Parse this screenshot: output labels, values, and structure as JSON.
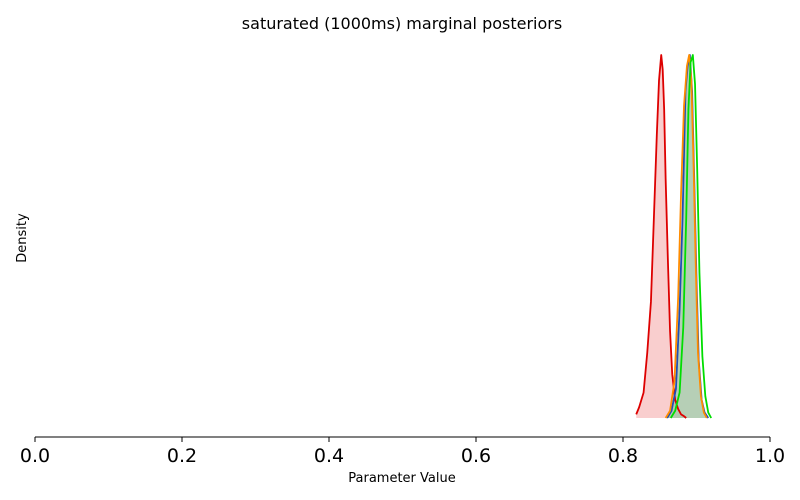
{
  "chart_data": {
    "type": "area",
    "title": "saturated (1000ms) marginal posteriors",
    "xlabel": "Parameter Value",
    "ylabel": "Density",
    "xlim": [
      0.0,
      1.0
    ],
    "xticks": [
      "0.0",
      "0.2",
      "0.4",
      "0.6",
      "0.8",
      "1.0"
    ],
    "grid": false,
    "legend": "none",
    "series": [
      {
        "color": "#dd0000",
        "fill": "#f4a6a6",
        "x": [
          0.818,
          0.822,
          0.828,
          0.833,
          0.838,
          0.842,
          0.846,
          0.849,
          0.852,
          0.854,
          0.856,
          0.858,
          0.861,
          0.864,
          0.867,
          0.871,
          0.875,
          0.879,
          0.883,
          0.886
        ],
        "y": [
          0.01,
          0.03,
          0.07,
          0.18,
          0.32,
          0.55,
          0.78,
          0.93,
          1.0,
          0.96,
          0.85,
          0.66,
          0.44,
          0.24,
          0.12,
          0.05,
          0.025,
          0.01,
          0.005,
          0.0
        ]
      },
      {
        "color": "#1f4eb4",
        "fill": "#a9c7a9",
        "x": [
          0.86,
          0.866,
          0.872,
          0.877,
          0.881,
          0.885,
          0.888,
          0.891,
          0.894,
          0.897,
          0.9,
          0.903,
          0.907,
          0.911,
          0.916
        ],
        "y": [
          0.0,
          0.02,
          0.08,
          0.3,
          0.55,
          0.9,
          0.97,
          1.0,
          0.9,
          0.65,
          0.38,
          0.16,
          0.05,
          0.015,
          0.0
        ]
      },
      {
        "color": "#ff8c00",
        "fill": "none",
        "x": [
          0.858,
          0.864,
          0.87,
          0.875,
          0.879,
          0.883,
          0.887,
          0.89,
          0.893,
          0.896,
          0.899,
          0.902,
          0.906,
          0.91,
          0.914
        ],
        "y": [
          0.0,
          0.02,
          0.1,
          0.33,
          0.62,
          0.86,
          0.97,
          1.0,
          0.93,
          0.7,
          0.42,
          0.18,
          0.06,
          0.015,
          0.0
        ]
      },
      {
        "color": "#00dd00",
        "fill": "none",
        "x": [
          0.865,
          0.871,
          0.877,
          0.882,
          0.886,
          0.889,
          0.892,
          0.895,
          0.898,
          0.901,
          0.904,
          0.908,
          0.912,
          0.916,
          0.92
        ],
        "y": [
          0.0,
          0.02,
          0.07,
          0.25,
          0.55,
          0.85,
          0.98,
          1.0,
          0.92,
          0.68,
          0.4,
          0.17,
          0.06,
          0.015,
          0.0
        ]
      }
    ]
  }
}
